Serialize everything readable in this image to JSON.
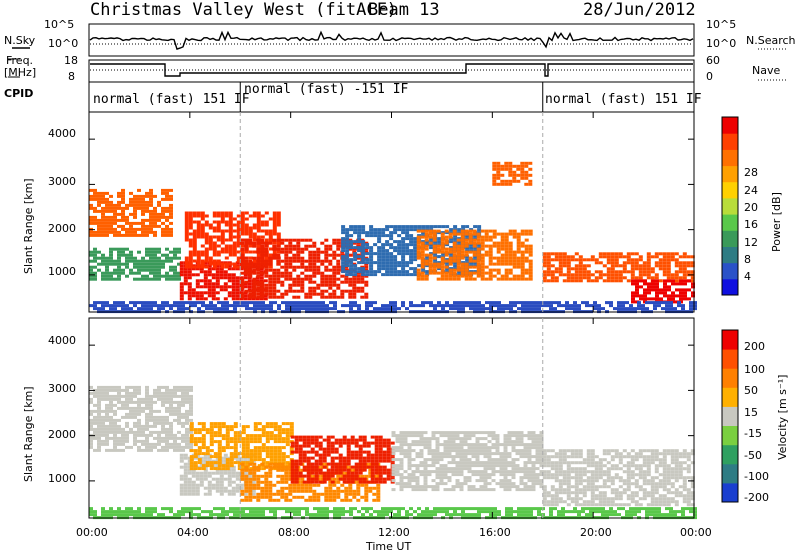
{
  "header": {
    "station": "Christmas Valley West (fitACF)",
    "beam": "Beam 13",
    "date": "28/Jun/2012"
  },
  "nsky_panel": {
    "left_label": "N.Sky",
    "right_label": "N.Search",
    "left_ticks": [
      "10^5",
      "10^0"
    ],
    "right_ticks": [
      "10^5",
      "10^0"
    ]
  },
  "freq_panel": {
    "left_label_1": "Freq.",
    "left_label_2": "[MHz]",
    "left_ticks": [
      "18",
      "8"
    ],
    "right_ticks": [
      "60",
      "0"
    ],
    "right_label": "Nave"
  },
  "cpid": {
    "label": "CPID",
    "segments": [
      {
        "text": "normal (fast) 151 IF",
        "start_h": 0.0
      },
      {
        "text": "normal (fast) -151 IF",
        "start_h": 6.0
      },
      {
        "text": "normal (fast) 151 IF",
        "start_h": 18.0
      }
    ]
  },
  "power_panel": {
    "ylabel": "Slant Range [km]",
    "yticks": [
      "4000",
      "3000",
      "2000",
      "1000"
    ],
    "cbar_label": "Power [dB]",
    "cbar_ticks": [
      "28",
      "24",
      "20",
      "16",
      "12",
      "8",
      "4"
    ],
    "cbar_colors": [
      "#1010e0",
      "#2a52c8",
      "#2e7c84",
      "#3a9a5a",
      "#59c84a",
      "#b8dc3a",
      "#ffd000",
      "#ffa000",
      "#ff7000",
      "#ff4000",
      "#ee0000"
    ]
  },
  "velocity_panel": {
    "ylabel": "Slant Range [km]",
    "yticks": [
      "4000",
      "3000",
      "2000",
      "1000"
    ],
    "cbar_label": "Velocity [m s⁻¹]",
    "cbar_ticks": [
      "200",
      "100",
      "50",
      "15",
      "-15",
      "-50",
      "-100",
      "-200"
    ],
    "cbar_colors": [
      "#1a3fd0",
      "#2e7c84",
      "#2fa060",
      "#7ad040",
      "#c8c8c0",
      "#ffb000",
      "#ff8000",
      "#ff5000",
      "#ee0000"
    ]
  },
  "xaxis": {
    "ticks": [
      "00:00",
      "04:00",
      "08:00",
      "12:00",
      "16:00",
      "20:00",
      "00:00"
    ],
    "label": "Time UT"
  },
  "chart_data": {
    "type": "heatmap",
    "x_range_hours": [
      0,
      24
    ],
    "y_range_km": [
      180,
      4600
    ],
    "dashed_time_markers_h": [
      6.0,
      18.0
    ],
    "power_bands": [
      {
        "t0": 0.0,
        "t1": 3.2,
        "r0": 1900,
        "r1": 2900,
        "color": "#ff6000"
      },
      {
        "t0": 0.0,
        "t1": 3.5,
        "r0": 900,
        "r1": 1600,
        "color": "#3a9a5a"
      },
      {
        "t0": 3.6,
        "t1": 7.0,
        "r0": 450,
        "r1": 1300,
        "color": "#ee1000"
      },
      {
        "t0": 3.8,
        "t1": 7.5,
        "r0": 1200,
        "r1": 2400,
        "color": "#ff3000"
      },
      {
        "t0": 6.0,
        "t1": 11.0,
        "r0": 500,
        "r1": 1800,
        "color": "#ee2000"
      },
      {
        "t0": 10.0,
        "t1": 15.5,
        "r0": 1000,
        "r1": 2100,
        "color": "#2e6cb0"
      },
      {
        "t0": 13.0,
        "t1": 17.5,
        "r0": 900,
        "r1": 2000,
        "color": "#ff7000"
      },
      {
        "t0": 16.0,
        "t1": 17.5,
        "r0": 3000,
        "r1": 3500,
        "color": "#ff6000"
      },
      {
        "t0": 18.0,
        "t1": 24.0,
        "r0": 900,
        "r1": 1500,
        "color": "#ff5000"
      },
      {
        "t0": 21.5,
        "t1": 24.0,
        "r0": 400,
        "r1": 900,
        "color": "#ee0000"
      },
      {
        "t0": 0.0,
        "t1": 24.0,
        "r0": 200,
        "r1": 420,
        "color": "#2a4cc0"
      }
    ],
    "velocity_bands": [
      {
        "t0": 0.0,
        "t1": 4.0,
        "r0": 1700,
        "r1": 3100,
        "color": "#c8c8c0"
      },
      {
        "t0": 3.6,
        "t1": 6.5,
        "r0": 700,
        "r1": 1600,
        "color": "#c8c8c0"
      },
      {
        "t0": 4.0,
        "t1": 8.0,
        "r0": 1300,
        "r1": 2300,
        "color": "#ffa000"
      },
      {
        "t0": 6.0,
        "t1": 11.5,
        "r0": 600,
        "r1": 1400,
        "color": "#ff8800"
      },
      {
        "t0": 8.0,
        "t1": 12.0,
        "r0": 1000,
        "r1": 2000,
        "color": "#ee2000"
      },
      {
        "t0": 12.0,
        "t1": 18.0,
        "r0": 800,
        "r1": 2100,
        "color": "#c8c8c0"
      },
      {
        "t0": 18.0,
        "t1": 24.0,
        "r0": 500,
        "r1": 1700,
        "color": "#c8c8c0"
      },
      {
        "t0": 0.0,
        "t1": 24.0,
        "r0": 200,
        "r1": 420,
        "color": "#59c84a"
      }
    ]
  }
}
